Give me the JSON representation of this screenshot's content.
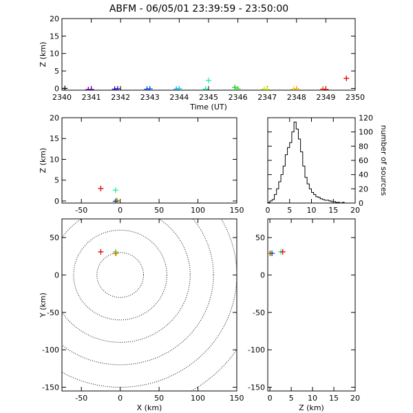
{
  "title": "ABFM - 06/05/01 23:39:59 - 23:50:00",
  "chart_data": [
    {
      "id": "time-height",
      "type": "scatter",
      "xlabel": "Time (UT)",
      "ylabel": "Z (km)",
      "xlim": [
        2340,
        2350
      ],
      "ylim": [
        -0.5,
        20
      ],
      "xticks": [
        "2340",
        "2341",
        "2342",
        "2343",
        "2344",
        "2345",
        "2346",
        "2347",
        "2348",
        "2349",
        "2350"
      ],
      "yticks": [
        "0",
        "5",
        "10",
        "15",
        "20"
      ],
      "points": [
        {
          "x": 2340.1,
          "y": 0.0,
          "color": "#000000"
        },
        {
          "x": 2340.9,
          "y": -0.3,
          "color": "#7a00a8"
        },
        {
          "x": 2341.0,
          "y": -0.3,
          "color": "#5a00b0"
        },
        {
          "x": 2341.8,
          "y": -0.2,
          "color": "#2800b8"
        },
        {
          "x": 2341.9,
          "y": -0.1,
          "color": "#1a10c0"
        },
        {
          "x": 2342.9,
          "y": -0.2,
          "color": "#0040e0"
        },
        {
          "x": 2343.0,
          "y": -0.1,
          "color": "#0060f0"
        },
        {
          "x": 2343.9,
          "y": -0.2,
          "color": "#00a0f0"
        },
        {
          "x": 2344.0,
          "y": -0.1,
          "color": "#00c0e0"
        },
        {
          "x": 2344.9,
          "y": -0.2,
          "color": "#00e0a0"
        },
        {
          "x": 2345.0,
          "y": 2.3,
          "color": "#20f090"
        },
        {
          "x": 2345.9,
          "y": 0.3,
          "color": "#00d020"
        },
        {
          "x": 2346.0,
          "y": -0.1,
          "color": "#40e020"
        },
        {
          "x": 2346.9,
          "y": -0.2,
          "color": "#b0f000"
        },
        {
          "x": 2347.0,
          "y": -0.3,
          "color": "#d8f000"
        },
        {
          "x": 2347.9,
          "y": -0.2,
          "color": "#f0d000"
        },
        {
          "x": 2348.0,
          "y": -0.1,
          "color": "#f8b000"
        },
        {
          "x": 2348.9,
          "y": -0.2,
          "color": "#e03000"
        },
        {
          "x": 2349.0,
          "y": -0.3,
          "color": "#e01000"
        },
        {
          "x": 2349.7,
          "y": 2.9,
          "color": "#e00000"
        }
      ]
    },
    {
      "id": "x-height",
      "type": "scatter",
      "xlabel": "",
      "ylabel": "Z (km)",
      "xlim": [
        -75,
        150
      ],
      "ylim": [
        -0.5,
        20
      ],
      "xticks": [
        "-50",
        "0",
        "50",
        "100",
        "150"
      ],
      "yticks": [
        "0",
        "5",
        "10",
        "15",
        "20"
      ],
      "points": [
        {
          "x": -25,
          "y": 3.0,
          "color": "#e00000"
        },
        {
          "x": -6,
          "y": 2.6,
          "color": "#20f090"
        },
        {
          "x": -5,
          "y": 0.2,
          "color": "#b0f000"
        },
        {
          "x": -4,
          "y": 0.0,
          "color": "#e06000"
        },
        {
          "x": -6,
          "y": -0.1,
          "color": "#0040e0"
        }
      ]
    },
    {
      "id": "height-histogram",
      "type": "histogram",
      "xlabel": "",
      "ylabel": "number of sources",
      "xlim": [
        0,
        20
      ],
      "ylim": [
        0,
        120
      ],
      "xticks": [
        "0",
        "5",
        "10",
        "15",
        "20"
      ],
      "yticks": [
        "0",
        "20",
        "40",
        "60",
        "80",
        "100",
        "120"
      ],
      "bin_width": 0.5,
      "counts": [
        1,
        3,
        5,
        12,
        20,
        30,
        40,
        52,
        68,
        78,
        85,
        100,
        114,
        104,
        90,
        72,
        52,
        36,
        27,
        20,
        15,
        12,
        9,
        8,
        6,
        5,
        4,
        4,
        3,
        2,
        2,
        1,
        1,
        0,
        1,
        0,
        0,
        0,
        0,
        0
      ]
    },
    {
      "id": "plan-view",
      "type": "scatter",
      "xlabel": "X (km)",
      "ylabel": "Y (km)",
      "xlim": [
        -75,
        150
      ],
      "ylim": [
        -155,
        75
      ],
      "xticks": [
        "-50",
        "0",
        "50",
        "100",
        "150"
      ],
      "yticks": [
        "-150",
        "-100",
        "-50",
        "0",
        "50"
      ],
      "range_rings_km": [
        30,
        60,
        90,
        120,
        150,
        180
      ],
      "ring_center": [
        0,
        0
      ],
      "points": [
        {
          "x": -25,
          "y": 31,
          "color": "#e00000"
        },
        {
          "x": -6,
          "y": 31,
          "color": "#20f090"
        },
        {
          "x": -5,
          "y": 29,
          "color": "#b0f000"
        },
        {
          "x": -6,
          "y": 29,
          "color": "#e06000"
        }
      ]
    },
    {
      "id": "height-y",
      "type": "scatter",
      "xlabel": "Z (km)",
      "ylabel": "",
      "xlim": [
        -0.5,
        20
      ],
      "ylim": [
        -155,
        75
      ],
      "xticks": [
        "0",
        "5",
        "10",
        "15",
        "20"
      ],
      "yticks": [
        "-150",
        "-100",
        "-50",
        "0",
        "50"
      ],
      "points": [
        {
          "x": 0.2,
          "y": 29,
          "color": "#b0f000"
        },
        {
          "x": 0.0,
          "y": 29,
          "color": "#e06000"
        },
        {
          "x": 0.5,
          "y": 29,
          "color": "#0040e0"
        },
        {
          "x": 2.6,
          "y": 31,
          "color": "#20f090"
        },
        {
          "x": 3.0,
          "y": 31,
          "color": "#e00000"
        }
      ]
    }
  ]
}
